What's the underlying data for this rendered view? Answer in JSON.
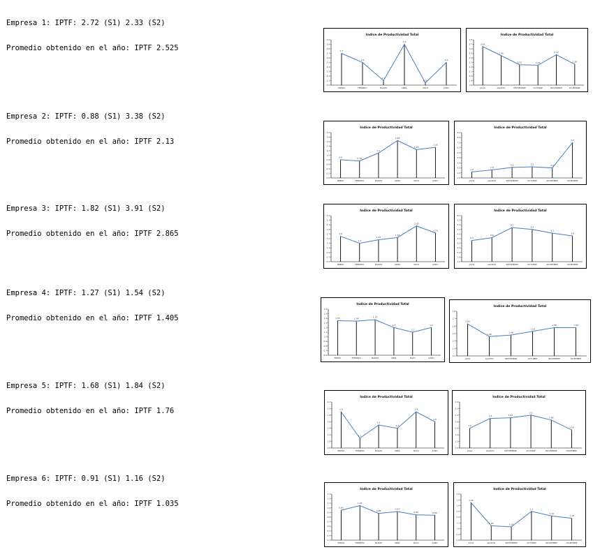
{
  "companies": [
    {
      "line1": "Empresa 1: IPTF: 2.72 (S1) 2.33 (S2)",
      "line2": "Promedio obtenido en el año: IPTF 2.525",
      "charts": [
        {
          "type": "line",
          "title": "Indice de Productividad Total",
          "categories": [
            "ENERO",
            "FEBRERO",
            "MARZO",
            "ABRIL",
            "MAYO",
            "JUNIO"
          ],
          "values": [
            2.7,
            2.5,
            2.1,
            2.9,
            2.05,
            2.5
          ],
          "labels": [
            "2.7",
            "2.5",
            "2.1",
            "2.9",
            "2.05",
            "2.5"
          ],
          "yticks": [
            "3.0",
            "2.9",
            "2.8",
            "2.7",
            "2.6",
            "2.5",
            "2.4",
            "2.3",
            "2.2",
            "2.1",
            "2.0"
          ],
          "ylim": [
            2.0,
            3.0
          ]
        },
        {
          "type": "line",
          "title": "Indice de Productividad Total",
          "categories": [
            "JULIO",
            "AGOSTO",
            "SEPTIEMBRE",
            "OCTUBRE",
            "NOVIEMBRE",
            "DICIEMBRE"
          ],
          "values": [
            2.65,
            2.45,
            2.25,
            2.24,
            2.47,
            2.26
          ],
          "labels": [
            "2.65",
            "2.45",
            "2.25",
            "2.24",
            "2.47",
            "2.26"
          ],
          "yticks": [
            "2.8",
            "2.7",
            "2.6",
            "2.5",
            "2.4",
            "2.3",
            "2.2",
            "2.1",
            "2.0",
            "1.9",
            "1.8"
          ],
          "ylim": [
            1.8,
            2.8
          ]
        }
      ]
    },
    {
      "line1": "Empresa 2: IPTF: 0.88 (S1) 3.38 (S2)",
      "line2": "Promedio obtenido en el año: IPTF 2.13",
      "charts": [
        {
          "type": "line",
          "title": "Indice de Productividad Total",
          "categories": [
            "ENERO",
            "FEBRERO",
            "MARZO",
            "ABRIL",
            "MAYO",
            "JUNIO"
          ],
          "values": [
            0.8,
            0.75,
            1.1,
            1.65,
            1.25,
            1.35
          ],
          "labels": [
            "0.8",
            "0.75",
            "1.1",
            "1.65",
            "1.25",
            "1.35"
          ],
          "yticks": [
            "2.0",
            "1.8",
            "1.6",
            "1.4",
            "1.2",
            "1.0",
            "0.8",
            "0.6",
            "0.4",
            "0.2",
            "0.0"
          ],
          "ylim": [
            0,
            2.0
          ]
        },
        {
          "type": "line",
          "title": "Indice de Productividad Total",
          "categories": [
            "JULIO",
            "AGOSTO",
            "SEPTIEMBRE",
            "OCTUBRE",
            "NOVIEMBRE",
            "DICIEMBRE"
          ],
          "values": [
            1.2,
            1.6,
            2.1,
            2.2,
            2.0,
            7.0
          ],
          "labels": [
            "1.2",
            "1.6",
            "2.1",
            "2.2",
            "2.0",
            "7.0"
          ],
          "yticks": [
            "9.0",
            "8.0",
            "7.0",
            "6.0",
            "5.0",
            "4.0",
            "3.0",
            "2.0",
            "1.0",
            "0.0"
          ],
          "ylim": [
            0,
            9.0
          ]
        }
      ]
    },
    {
      "line1": "Empresa 3: IPTF: 1.82 (S1) 3.91 (S2)",
      "line2": "Promedio obtenido en el año: IPTF 2.865",
      "charts": [
        {
          "type": "line",
          "title": "Indice de Productividad Total",
          "categories": [
            "ENERO",
            "FEBRERO",
            "MARZO",
            "ABRIL",
            "MAYO",
            "JUNIO"
          ],
          "values": [
            1.6,
            1.3,
            1.45,
            1.55,
            2.05,
            1.75
          ],
          "labels": [
            "1.6",
            "1.3",
            "1.45",
            "1.55",
            "2.05",
            "1.75"
          ],
          "yticks": [
            "2.5",
            "2.3",
            "2.1",
            "1.9",
            "1.7",
            "1.5",
            "1.3",
            "1.1",
            "0.9",
            "0.7",
            "0.5"
          ],
          "ylim": [
            0.5,
            2.5
          ]
        },
        {
          "type": "line",
          "title": "Indice de Productividad Total",
          "categories": [
            "JULIO",
            "AGOSTO",
            "SEPTIEMBRE",
            "OCTUBRE",
            "NOVIEMBRE",
            "DICIEMBRE"
          ],
          "values": [
            3.3,
            3.6,
            4.7,
            4.5,
            4.1,
            3.8
          ],
          "labels": [
            "3.3",
            "3.6",
            "4.7",
            "4.5",
            "4.1",
            "3.8"
          ],
          "yticks": [
            "6.0",
            "5.5",
            "5.0",
            "4.5",
            "4.0",
            "3.5",
            "3.0",
            "2.5",
            "2.0",
            "1.5",
            "1.0"
          ],
          "ylim": [
            1.0,
            6.0
          ]
        }
      ]
    },
    {
      "line1": "Empresa 4: IPTF: 1.27 (S1) 1.54 (S2)",
      "line2": "Promedio obtenido en el año: IPTF 1.405",
      "charts": [
        {
          "type": "line",
          "title": "Indice de Productividad Total",
          "categories": [
            "ENERO",
            "FEBRERO",
            "MARZO",
            "ABRIL",
            "MAYO",
            "JUNIO"
          ],
          "values": [
            1.35,
            1.34,
            1.37,
            1.2,
            1.1,
            1.2
          ],
          "labels": [
            "1.35",
            "1.34",
            "1.37",
            "1.2",
            "1.1",
            "1.2"
          ],
          "yticks": [
            "1.6",
            "1.5",
            "1.4",
            "1.3",
            "1.2",
            "1.1",
            "1.0",
            "0.9",
            "0.8",
            "0.7",
            "0.6"
          ],
          "ylim": [
            0.6,
            1.6
          ]
        },
        {
          "type": "line",
          "title": "Indice de Productividad Total",
          "categories": [
            "JULIO",
            "AGOSTO",
            "SEPTIEMBRE",
            "OCTUBRE",
            "NOVIEMBRE",
            "DICIEMBRE"
          ],
          "values": [
            1.63,
            1.46,
            1.48,
            1.53,
            1.58,
            1.58
          ],
          "labels": [
            "1.63",
            "1.46",
            "1.48",
            "1.53",
            "1.58",
            "1.58"
          ],
          "yticks": [
            "1.8",
            "1.7",
            "1.6",
            "1.5",
            "1.4",
            "1.3",
            "1.2"
          ],
          "ylim": [
            1.2,
            1.8
          ]
        }
      ]
    },
    {
      "line1": "Empresa 5: IPTF: 1.68 (S1) 1.84 (S2)",
      "line2": "Promedio obtenido en el año: IPTF 1.76",
      "charts": [
        {
          "type": "line",
          "title": "Indice de Productividad Total",
          "categories": [
            "ENERO",
            "FEBRERO",
            "MARZO",
            "ABRIL",
            "MAYO",
            "JUNIO"
          ],
          "values": [
            1.9,
            1.1,
            1.5,
            1.4,
            1.9,
            1.6
          ],
          "labels": [
            "1.9",
            "1.1",
            "1.5",
            "1.4",
            "1.9",
            "1.6"
          ],
          "yticks": [
            "2.2",
            "2.0",
            "1.8",
            "1.6",
            "1.4",
            "1.2",
            "1.0",
            "0.8"
          ],
          "ylim": [
            0.8,
            2.2
          ]
        },
        {
          "type": "line",
          "title": "Indice de Productividad Total",
          "categories": [
            "JULIO",
            "AGOSTO",
            "SEPTIEMBRE",
            "OCTUBRE",
            "NOVIEMBRE",
            "DICIEMBRE"
          ],
          "values": [
            1.6,
            1.9,
            1.92,
            2.0,
            1.85,
            1.55
          ],
          "labels": [
            "1.6",
            "1.9",
            "1.92",
            "2.0",
            "1.85",
            "1.55"
          ],
          "yticks": [
            "2.4",
            "2.2",
            "2.0",
            "1.8",
            "1.6",
            "1.4",
            "1.2",
            "1.0"
          ],
          "ylim": [
            1.0,
            2.4
          ]
        }
      ]
    },
    {
      "line1": "Empresa 6: IPTF: 0.91 (S1) 1.16 (S2)",
      "line2": "Promedio obtenido en el año: IPTF 1.035",
      "charts": [
        {
          "type": "line",
          "title": "Indice de Productividad Total",
          "categories": [
            "ENERO",
            "FEBRERO",
            "MARZO",
            "ABRIL",
            "MAYO",
            "JUNIO"
          ],
          "values": [
            0.95,
            1.05,
            0.88,
            0.92,
            0.85,
            0.84
          ],
          "labels": [
            "0.95",
            "1.05",
            "0.88",
            "0.92",
            "0.85",
            "0.84"
          ],
          "yticks": [
            "1.3",
            "1.2",
            "1.1",
            "1.0",
            "0.9",
            "0.8",
            "0.7",
            "0.6",
            "0.5",
            "0.4",
            "0.3"
          ],
          "ylim": [
            0.3,
            1.3
          ]
        },
        {
          "type": "line",
          "title": "Indice de Productividad Total",
          "categories": [
            "JULIO",
            "AGOSTO",
            "SEPTIEMBRE",
            "OCTUBRE",
            "NOVIEMBRE",
            "DICIEMBRE"
          ],
          "values": [
            1.45,
            1.05,
            1.03,
            1.3,
            1.22,
            1.18
          ],
          "labels": [
            "1.45",
            "1.05",
            "1.03",
            "1.3",
            "1.22",
            "1.18"
          ],
          "yticks": [
            "1.6",
            "1.5",
            "1.4",
            "1.3",
            "1.2",
            "1.1",
            "1.0",
            "0.9",
            "0.8"
          ],
          "ylim": [
            0.8,
            1.6
          ]
        }
      ]
    }
  ],
  "line_color": "#4a7ebb",
  "drop_line_color": "#000000"
}
